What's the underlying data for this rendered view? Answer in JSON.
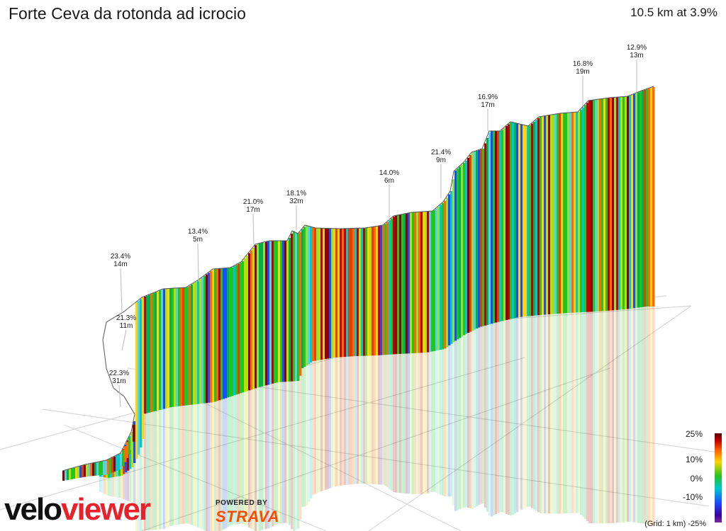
{
  "header": {
    "title": "Forte Ceva da rotonda ad icrocio",
    "summary": "10.5 km at 3.9%"
  },
  "legend": {
    "ticks": [
      "25%",
      "10%",
      "0%",
      "-10%",
      "-25%"
    ],
    "grid_note": "(Grid: 1 km)"
  },
  "branding": {
    "logo_part1": "velo",
    "logo_part2": "viewer",
    "powered_by": "POWERED BY",
    "strava": "STRAVA"
  },
  "colors": {
    "steep": "#c00000",
    "hard": "#ff6a00",
    "moderate": "#ffd400",
    "flat": "#22c422",
    "descent": "#00c8d0",
    "steep_descent": "#1a4cff",
    "brand_red": "#e8212b",
    "strava_orange": "#fc4c02"
  },
  "chart_data": {
    "type": "area",
    "distance_km": 10.5,
    "avg_gradient_pct": 3.9,
    "legend_scale_pct": [
      25,
      10,
      0,
      -10,
      -25
    ],
    "annotations": [
      {
        "gradient": "22.3%",
        "length": "31m"
      },
      {
        "gradient": "21.3%",
        "length": "11m"
      },
      {
        "gradient": "23.4%",
        "length": "14m"
      },
      {
        "gradient": "13.4%",
        "length": "5m"
      },
      {
        "gradient": "21.0%",
        "length": "17m"
      },
      {
        "gradient": "18.1%",
        "length": "32m"
      },
      {
        "gradient": "14.0%",
        "length": "6m"
      },
      {
        "gradient": "21.4%",
        "length": "9m"
      },
      {
        "gradient": "16.9%",
        "length": "17m"
      },
      {
        "gradient": "16.8%",
        "length": "19m"
      },
      {
        "gradient": "12.9%",
        "length": "13m"
      }
    ]
  }
}
